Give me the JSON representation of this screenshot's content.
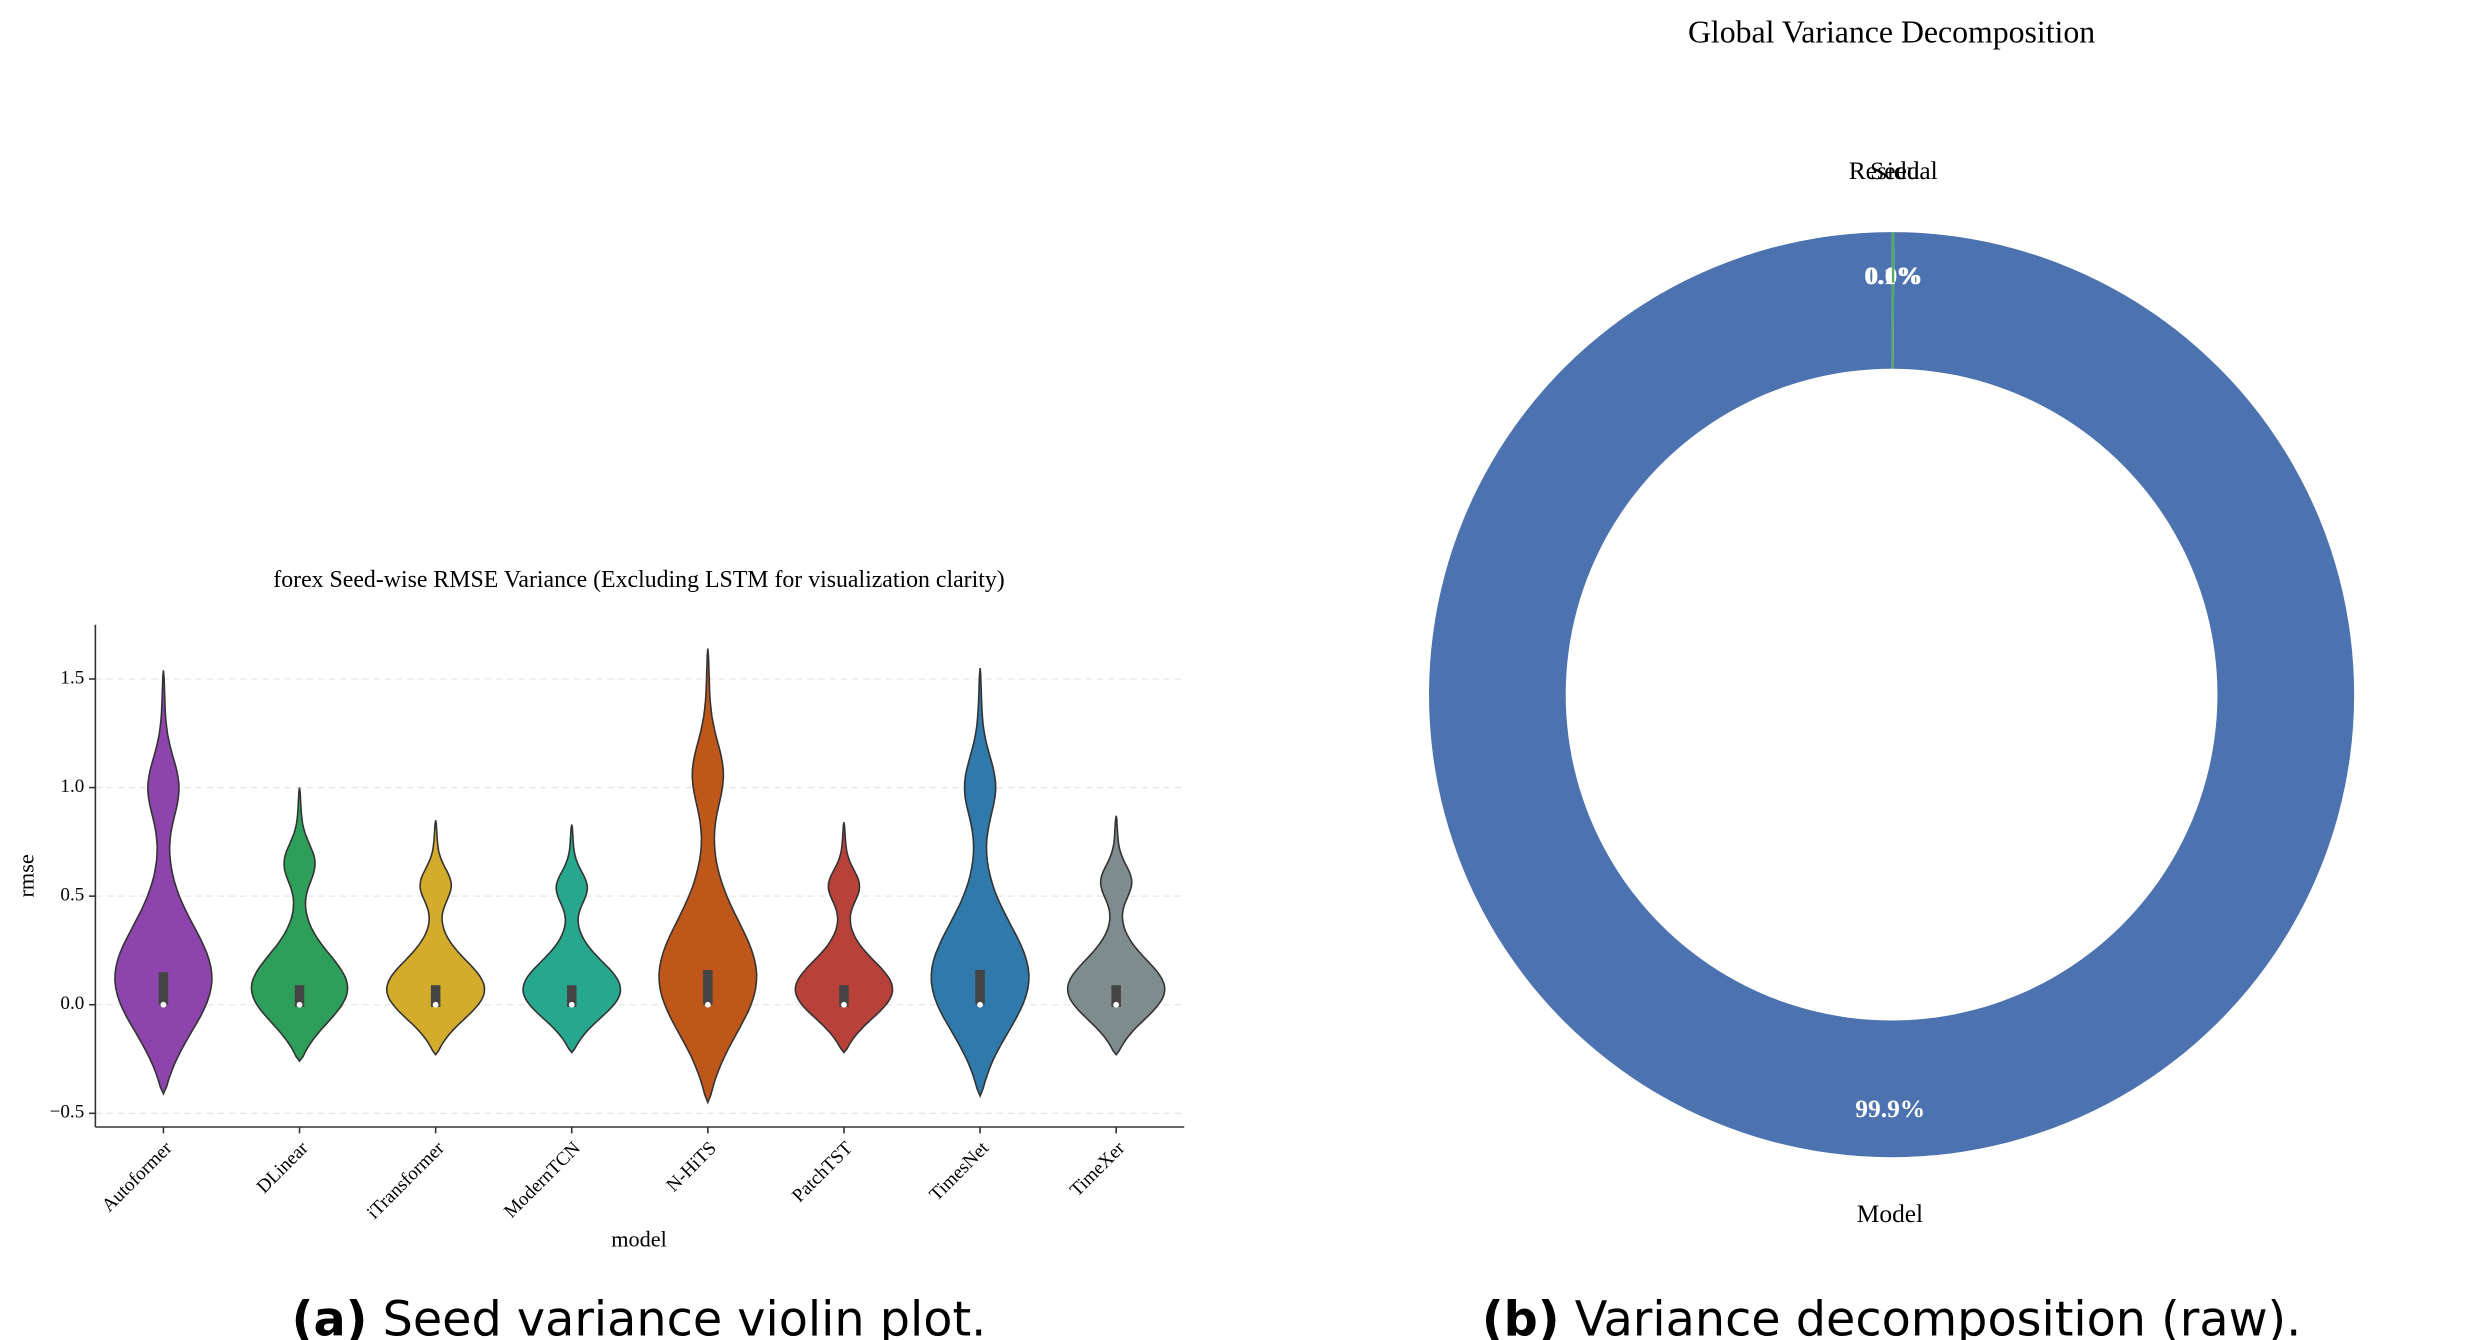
{
  "chart_data": [
    {
      "type": "violin",
      "title": "forex Seed-wise RMSE Variance (Excluding LSTM for visualization clarity)",
      "x_label": "model",
      "y_label": "rmse",
      "categories": [
        "Autoformer",
        "DLinear",
        "iTransformer",
        "ModernTCN",
        "N-HiTS",
        "PatchTST",
        "TimesNet",
        "TimeXer"
      ],
      "colors": [
        "#8e44ad",
        "#2e9e5b",
        "#d4ac2b",
        "#27a88e",
        "#c0571a",
        "#b8413a",
        "#2f7aaa",
        "#7f8c8d"
      ],
      "min": [
        -0.41,
        -0.26,
        -0.23,
        -0.22,
        -0.45,
        -0.22,
        -0.42,
        -0.23
      ],
      "q1": [
        0.0,
        -0.01,
        -0.01,
        -0.01,
        0.0,
        -0.01,
        0.0,
        -0.01
      ],
      "median": [
        0.0,
        0.0,
        0.0,
        0.0,
        0.0,
        0.0,
        0.0,
        0.0
      ],
      "q3": [
        0.15,
        0.09,
        0.09,
        0.09,
        0.16,
        0.09,
        0.16,
        0.09
      ],
      "max": [
        1.54,
        1.0,
        0.85,
        0.83,
        1.64,
        0.84,
        1.55,
        0.87
      ],
      "ylim": [
        -0.563,
        1.75
      ],
      "yticks": [
        {
          "value": -0.5,
          "label": "−0.5"
        },
        {
          "value": 0,
          "label": "0.0"
        },
        0.5,
        {
          "value": 1,
          "label": "1.0"
        },
        1.5
      ],
      "grid": true
    },
    {
      "type": "donut",
      "title": "Global Variance Decomposition",
      "categories": [
        "Model",
        "Seed",
        "Residual"
      ],
      "values": [
        99.9,
        0.0,
        0.1
      ],
      "value_labels": [
        "99.9%",
        "0.0%",
        "0.1%"
      ],
      "colors": [
        "#4c72b0",
        "#dd8452",
        "#55a868"
      ],
      "start_angle": 90
    }
  ],
  "captions": [
    {
      "label": "(a)",
      "text": "Seed variance violin plot."
    },
    {
      "label": "(b)",
      "text": "Variance decomposition (raw)."
    }
  ]
}
